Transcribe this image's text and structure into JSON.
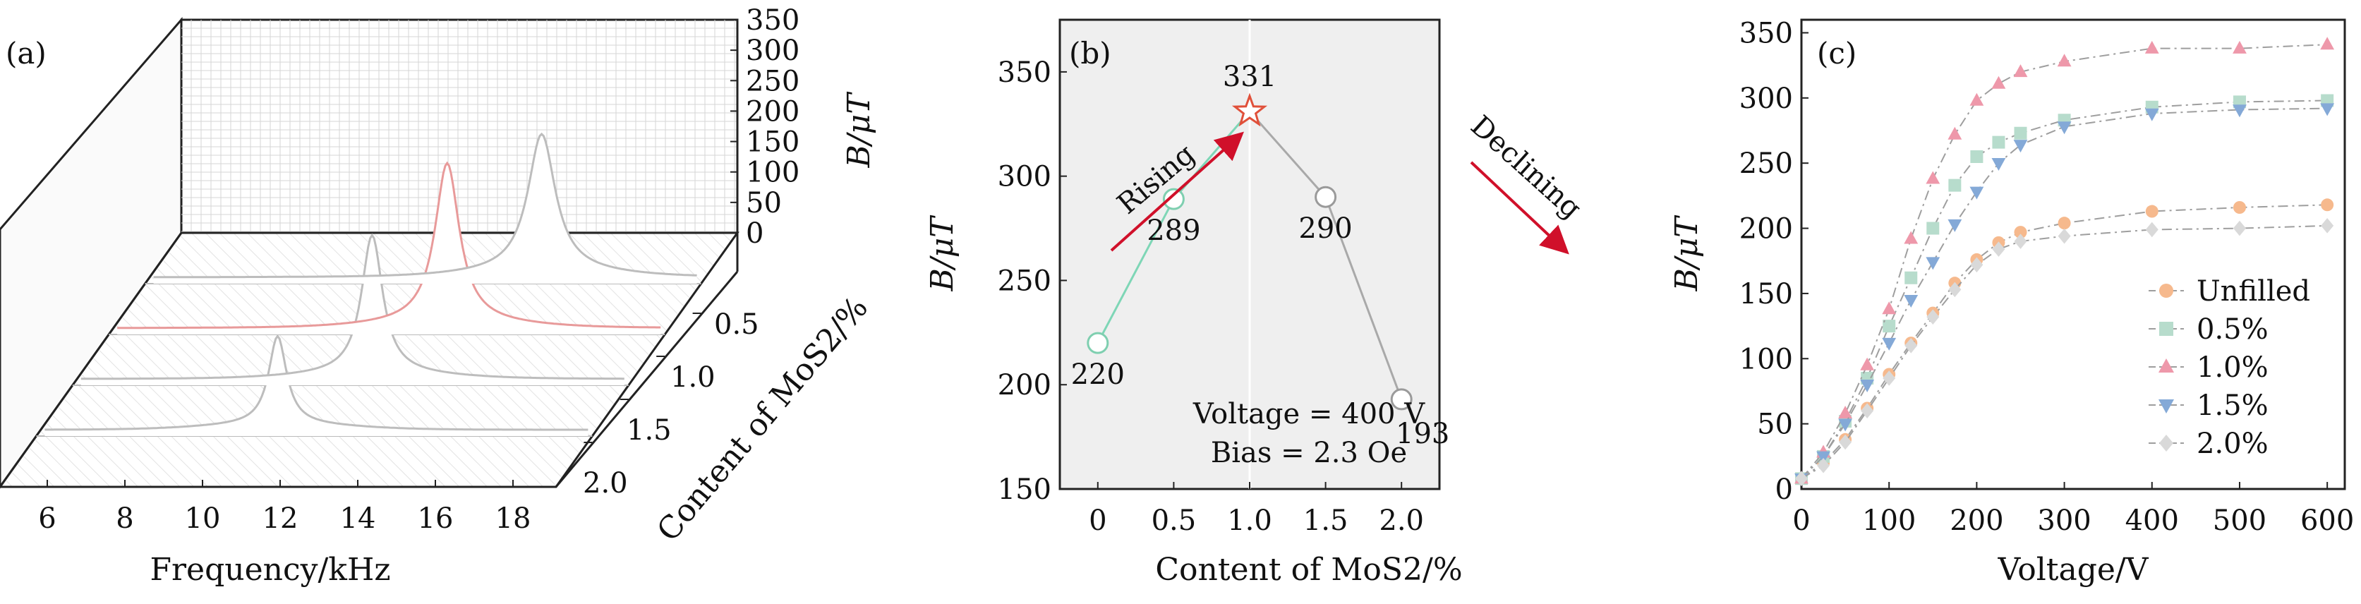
{
  "figure": {
    "labels": {
      "a": "(a)",
      "b": "(b)",
      "c": "(c)"
    }
  },
  "chart_data": [
    {
      "id": "a",
      "type": "area",
      "title": "",
      "xlabel": "Frequency/kHz",
      "ylabel": "B/μT",
      "zlabel": "Content of MoS2/%",
      "xticks": [
        "6",
        "8",
        "10",
        "12",
        "14",
        "16",
        "18"
      ],
      "yticks": [
        "0",
        "50",
        "100",
        "150",
        "200",
        "250",
        "300",
        "350"
      ],
      "zticks": [
        "0.5",
        "1.0",
        "1.5",
        "2.0"
      ],
      "ylim": [
        0,
        350
      ],
      "series": [
        {
          "name": "2.0",
          "peak_freq_khz": 11.0,
          "peak_b": 193,
          "color": "#bdbdbd"
        },
        {
          "name": "1.5",
          "peak_freq_khz": 12.5,
          "peak_b": 290,
          "color": "#bdbdbd"
        },
        {
          "name": "1.0",
          "peak_freq_khz": 13.5,
          "peak_b": 331,
          "color": "#e89a9a"
        },
        {
          "name": "0.5",
          "peak_freq_khz": 15.0,
          "peak_b": 289,
          "color": "#bdbdbd"
        }
      ]
    },
    {
      "id": "b",
      "type": "line",
      "xlabel": "Content of MoS2/%",
      "ylabel": "B/μT",
      "x": [
        0,
        0.5,
        1.0,
        1.5,
        2.0
      ],
      "y": [
        220,
        289,
        331,
        290,
        193
      ],
      "point_labels": [
        "220",
        "289",
        "331",
        "290",
        "193"
      ],
      "xticks": [
        "0",
        "0.5",
        "1.0",
        "1.5",
        "2.0"
      ],
      "yticks": [
        "150",
        "200",
        "250",
        "300",
        "350"
      ],
      "xlim": [
        -0.25,
        2.25
      ],
      "ylim": [
        150,
        375
      ],
      "annotations": {
        "rising": "Rising",
        "declining": "Declining",
        "voltage": "Voltage = 400 V",
        "bias": "Bias = 2.3 Oe"
      },
      "colors": {
        "rising": "#7ed6b6",
        "declining": "#a9a9a9",
        "arrow": "#d0102a",
        "star": "#e0503a",
        "marker": "#7fcfb0"
      }
    },
    {
      "id": "c",
      "type": "line",
      "xlabel": "Voltage/V",
      "ylabel": "B/μT",
      "xticks": [
        "0",
        "100",
        "200",
        "300",
        "400",
        "500",
        "600"
      ],
      "yticks": [
        "0",
        "50",
        "100",
        "150",
        "200",
        "250",
        "300",
        "350"
      ],
      "xlim": [
        0,
        620
      ],
      "ylim": [
        0,
        360
      ],
      "x": [
        0,
        25,
        50,
        75,
        100,
        125,
        150,
        175,
        200,
        225,
        250,
        300,
        400,
        500,
        600
      ],
      "series": [
        {
          "name": "Unfilled",
          "marker": "circle",
          "color": "#f6b98d",
          "values": [
            8,
            20,
            38,
            62,
            88,
            112,
            135,
            158,
            176,
            189,
            197,
            204,
            213,
            216,
            218
          ]
        },
        {
          "name": "0.5%",
          "marker": "square",
          "color": "#b7dccc",
          "values": [
            8,
            25,
            52,
            85,
            125,
            162,
            200,
            233,
            255,
            266,
            273,
            283,
            293,
            297,
            298
          ]
        },
        {
          "name": "1.0%",
          "marker": "triangle-up",
          "color": "#ee98aa",
          "values": [
            8,
            28,
            58,
            95,
            138,
            192,
            238,
            272,
            298,
            311,
            320,
            328,
            338,
            338,
            341
          ]
        },
        {
          "name": "1.5%",
          "marker": "triangle-down",
          "color": "#84a9d7",
          "values": [
            8,
            25,
            50,
            80,
            112,
            145,
            174,
            203,
            228,
            250,
            264,
            278,
            288,
            291,
            292
          ]
        },
        {
          "name": "2.0%",
          "marker": "diamond",
          "color": "#d9d9d9",
          "values": [
            8,
            18,
            36,
            60,
            85,
            110,
            132,
            153,
            172,
            184,
            190,
            194,
            199,
            200,
            202
          ]
        }
      ]
    }
  ]
}
